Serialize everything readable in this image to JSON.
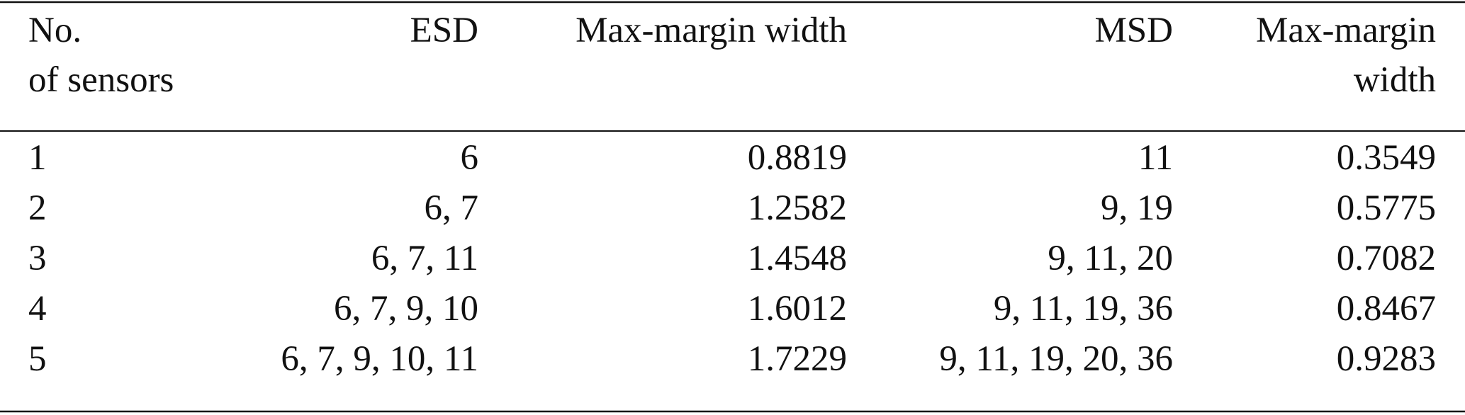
{
  "table": {
    "header": [
      [
        "No.",
        "of sensors"
      ],
      [
        "ESD"
      ],
      [
        "Max-margin width"
      ],
      [
        "MSD"
      ],
      [
        "Max-margin",
        "width"
      ]
    ],
    "rows": [
      [
        1,
        "6",
        0.8819,
        "11",
        0.3549
      ],
      [
        2,
        "6, 7",
        1.2582,
        "9, 19",
        0.5775
      ],
      [
        3,
        "6, 7, 11",
        1.4548,
        "9, 11, 20",
        0.7082
      ],
      [
        4,
        "6, 7, 9, 10",
        1.6012,
        "9, 11, 19, 36",
        0.8467
      ],
      [
        5,
        "6, 7, 9, 10, 11",
        1.7229,
        "9, 11, 19, 20, 36",
        0.9283
      ]
    ]
  }
}
